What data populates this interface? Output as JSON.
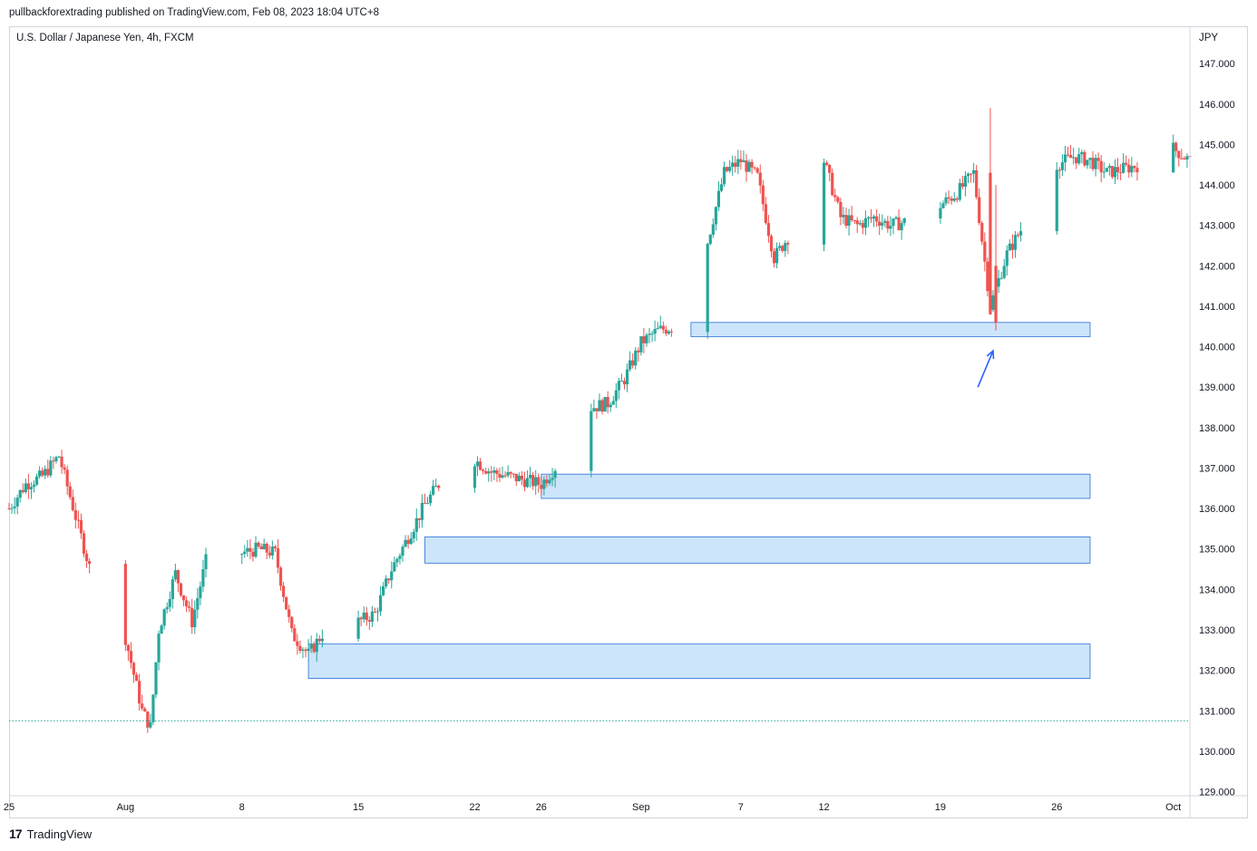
{
  "header": {
    "publisher": "pullbackforextrading published on TradingView.com, Feb 08, 2023 18:04 UTC+8",
    "symbol": "U.S. Dollar / Japanese Yen, 4h, FXCM"
  },
  "footer": {
    "logo_mark": "17",
    "brand": "TradingView"
  },
  "colors": {
    "up": "#26a69a",
    "down": "#ef5350",
    "zone_fill": "#cce5fb",
    "zone_stroke": "#2a6fd6",
    "arrow": "#2962ff",
    "dotted": "#26a69a"
  },
  "chart_data": {
    "type": "candlestick",
    "y_axis_title": "JPY",
    "y_ticks": [
      "147.000",
      "146.000",
      "145.000",
      "144.000",
      "143.000",
      "142.000",
      "141.000",
      "140.000",
      "139.000",
      "138.000",
      "137.000",
      "136.000",
      "135.000",
      "134.000",
      "133.000",
      "132.000",
      "131.000",
      "130.000",
      "129.000"
    ],
    "x_ticks": [
      "25",
      "Aug",
      "8",
      "15",
      "22",
      "26",
      "Sep",
      "7",
      "12",
      "19",
      "26",
      "Oct"
    ],
    "ylim": [
      128.9,
      147.9
    ],
    "x_days": [
      "2022-07-25",
      "2022-10-04"
    ],
    "x_tick_dates": [
      "2022-07-25",
      "2022-08-01",
      "2022-08-08",
      "2022-08-15",
      "2022-08-22",
      "2022-08-26",
      "2022-09-01",
      "2022-09-07",
      "2022-09-12",
      "2022-09-19",
      "2022-09-26",
      "2022-10-03"
    ],
    "path_points": [
      [
        "2022-07-25",
        136.0
      ],
      [
        "2022-07-26",
        136.6
      ],
      [
        "2022-07-27",
        136.8
      ],
      [
        "2022-07-28",
        137.3
      ],
      [
        "2022-07-29",
        135.8
      ],
      [
        "2022-07-30",
        134.3
      ],
      [
        "2022-07-31",
        133.8
      ],
      [
        "2022-08-01",
        132.8
      ],
      [
        "2022-08-02",
        131.0
      ],
      [
        "2022-08-02 12:00",
        130.6
      ],
      [
        "2022-08-03",
        133.0
      ],
      [
        "2022-08-04",
        134.4
      ],
      [
        "2022-08-05",
        133.2
      ],
      [
        "2022-08-06",
        135.0
      ],
      [
        "2022-08-07",
        135.3
      ],
      [
        "2022-08-08",
        134.9
      ],
      [
        "2022-08-09",
        135.0
      ],
      [
        "2022-08-10",
        134.9
      ],
      [
        "2022-08-11",
        132.9
      ],
      [
        "2022-08-12",
        132.4
      ],
      [
        "2022-08-13",
        133.0
      ],
      [
        "2022-08-14",
        133.5
      ],
      [
        "2022-08-15",
        133.2
      ],
      [
        "2022-08-16",
        133.4
      ],
      [
        "2022-08-17",
        134.5
      ],
      [
        "2022-08-18",
        135.3
      ],
      [
        "2022-08-19",
        136.1
      ],
      [
        "2022-08-20",
        136.7
      ],
      [
        "2022-08-21",
        137.0
      ],
      [
        "2022-08-22",
        137.2
      ],
      [
        "2022-08-23",
        136.9
      ],
      [
        "2022-08-24",
        136.8
      ],
      [
        "2022-08-25",
        136.7
      ],
      [
        "2022-08-26",
        136.6
      ],
      [
        "2022-08-27",
        137.1
      ],
      [
        "2022-08-28",
        138.8
      ],
      [
        "2022-08-29",
        138.5
      ],
      [
        "2022-08-30",
        138.6
      ],
      [
        "2022-08-31",
        139.2
      ],
      [
        "2022-09-01",
        140.1
      ],
      [
        "2022-09-02",
        140.4
      ],
      [
        "2022-09-03",
        140.5
      ],
      [
        "2022-09-04",
        140.6
      ],
      [
        "2022-09-05",
        142.6
      ],
      [
        "2022-09-06",
        144.3
      ],
      [
        "2022-09-07",
        144.6
      ],
      [
        "2022-09-08",
        144.2
      ],
      [
        "2022-09-09",
        142.2
      ],
      [
        "2022-09-10",
        142.8
      ],
      [
        "2022-09-11",
        142.4
      ],
      [
        "2022-09-12",
        144.6
      ],
      [
        "2022-09-13",
        143.2
      ],
      [
        "2022-09-14",
        143.0
      ],
      [
        "2022-09-15",
        143.2
      ],
      [
        "2022-09-16",
        143.0
      ],
      [
        "2022-09-17",
        143.1
      ],
      [
        "2022-09-18",
        143.2
      ],
      [
        "2022-09-19",
        143.5
      ],
      [
        "2022-09-20",
        143.8
      ],
      [
        "2022-09-21",
        144.3
      ],
      [
        "2022-09-22",
        141.0
      ],
      [
        "2022-09-23",
        142.3
      ],
      [
        "2022-09-24",
        143.0
      ],
      [
        "2022-09-25",
        143.9
      ],
      [
        "2022-09-26",
        144.5
      ],
      [
        "2022-09-27",
        144.7
      ],
      [
        "2022-09-28",
        144.6
      ],
      [
        "2022-09-29",
        144.3
      ],
      [
        "2022-09-30",
        144.4
      ],
      [
        "2022-10-01",
        144.5
      ],
      [
        "2022-10-02",
        144.6
      ],
      [
        "2022-10-03",
        144.9
      ],
      [
        "2022-10-04",
        144.6
      ]
    ],
    "spikes": [
      {
        "date": "2022-09-22",
        "price": 145.9
      },
      {
        "date": "2022-09-22 08:00",
        "price": 140.4
      }
    ],
    "zones": [
      {
        "start": "2022-09-04",
        "end": "2022-09-28",
        "top": 140.6,
        "bottom": 140.25
      },
      {
        "start": "2022-08-26",
        "end": "2022-09-28",
        "top": 136.85,
        "bottom": 136.25
      },
      {
        "start": "2022-08-19",
        "end": "2022-09-28",
        "top": 135.3,
        "bottom": 134.65
      },
      {
        "start": "2022-08-12",
        "end": "2022-09-28",
        "top": 132.65,
        "bottom": 131.8
      }
    ],
    "dotted_level": 130.75,
    "arrow": {
      "from": [
        "2022-09-21 06:00",
        139.0
      ],
      "to": [
        "2022-09-22 04:00",
        139.9
      ]
    }
  }
}
